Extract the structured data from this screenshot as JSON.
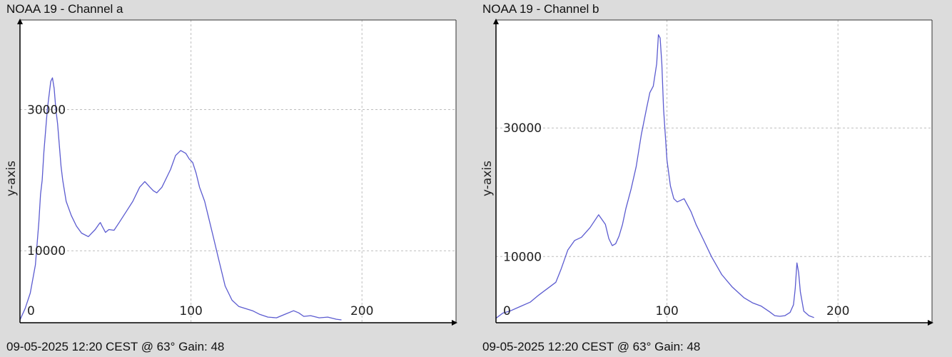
{
  "chart_data": [
    {
      "type": "line",
      "title": "NOAA 19 - Channel a",
      "footer": "09-05-2025 12:20 CEST @ 63° Gain: 48",
      "xlabel": "",
      "ylabel": "y-axis",
      "xlim": [
        0,
        255
      ],
      "ylim": [
        -200,
        42700
      ],
      "x_ticks": [
        0,
        100,
        200
      ],
      "y_ticks": [
        10000,
        30000
      ],
      "grid": true,
      "line_color": "#5b5bd0",
      "series": [
        {
          "x": [
            0,
            3,
            6,
            9,
            11,
            12,
            13,
            14,
            16,
            18,
            19,
            20,
            21,
            22,
            23,
            24,
            25,
            27,
            30,
            33,
            36,
            40,
            44,
            46,
            47,
            48,
            50,
            52,
            55,
            58,
            62,
            66,
            70,
            73,
            76,
            78,
            80,
            83,
            86,
            88,
            91,
            94,
            97,
            99,
            101,
            103,
            105,
            108,
            110,
            113,
            116,
            120,
            124,
            128,
            132,
            136,
            140,
            145,
            150,
            155,
            160,
            163,
            166,
            170,
            175,
            180,
            185,
            188
          ],
          "y": [
            200,
            1800,
            4000,
            8000,
            14000,
            18000,
            20000,
            24000,
            30000,
            34000,
            34500,
            33000,
            30000,
            28000,
            25000,
            22000,
            20000,
            17000,
            15000,
            13500,
            12500,
            12000,
            13000,
            13700,
            14000,
            13500,
            12600,
            13000,
            12900,
            14000,
            15500,
            17000,
            19000,
            19800,
            19000,
            18500,
            18200,
            19000,
            20500,
            21500,
            23500,
            24200,
            23800,
            23000,
            22500,
            21000,
            19000,
            17000,
            15000,
            12000,
            9000,
            5000,
            3000,
            2100,
            1800,
            1500,
            1000,
            600,
            500,
            1000,
            1500,
            1200,
            700,
            800,
            500,
            600,
            300,
            200
          ]
        }
      ]
    },
    {
      "type": "line",
      "title": "NOAA 19 - Channel b",
      "footer": "09-05-2025 12:20 CEST @ 63° Gain: 48",
      "xlabel": "",
      "ylabel": "y-axis",
      "xlim": [
        0,
        255
      ],
      "ylim": [
        -300,
        46800
      ],
      "x_ticks": [
        0,
        100,
        200
      ],
      "y_ticks": [
        10000,
        30000
      ],
      "grid": true,
      "line_color": "#5b5bd0",
      "series": [
        {
          "x": [
            0,
            4,
            8,
            14,
            20,
            25,
            30,
            35,
            38,
            42,
            46,
            50,
            55,
            60,
            64,
            66,
            68,
            70,
            72,
            74,
            76,
            79,
            82,
            85,
            88,
            90,
            92,
            94,
            95,
            96,
            97,
            98,
            99,
            100,
            101,
            102,
            104,
            106,
            110,
            114,
            117,
            121,
            126,
            132,
            138,
            145,
            150,
            155,
            160,
            163,
            166,
            169,
            172,
            174,
            175,
            176,
            177,
            178,
            180,
            183,
            186
          ],
          "y": [
            400,
            1200,
            1500,
            2200,
            2900,
            4000,
            5000,
            6000,
            8000,
            11000,
            12500,
            13000,
            14500,
            16500,
            15000,
            12800,
            11700,
            12000,
            13200,
            15000,
            17500,
            20500,
            24000,
            29000,
            33000,
            35500,
            36500,
            40000,
            44500,
            44000,
            40000,
            33000,
            29000,
            25000,
            23000,
            21000,
            19000,
            18500,
            19000,
            17000,
            15000,
            12800,
            10000,
            7200,
            5300,
            3600,
            2800,
            2300,
            1400,
            800,
            700,
            800,
            1300,
            2500,
            5000,
            9000,
            7500,
            4500,
            1500,
            800,
            500
          ]
        }
      ]
    }
  ]
}
